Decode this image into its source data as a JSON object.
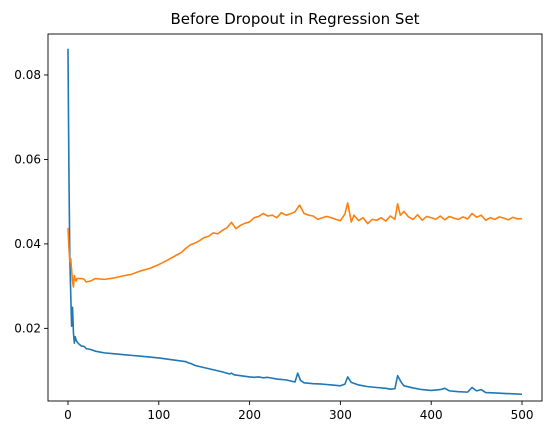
{
  "chart_data": {
    "type": "line",
    "title": "Before Dropout in Regression Set",
    "xlabel": "",
    "ylabel": "",
    "xlim": [
      -22,
      522
    ],
    "ylim": [
      0.0028,
      0.0897
    ],
    "xticks": [
      0,
      100,
      200,
      300,
      400,
      500
    ],
    "yticks": [
      0.02,
      0.04,
      0.06,
      0.08
    ],
    "xtick_labels": [
      "0",
      "100",
      "200",
      "300",
      "400",
      "500"
    ],
    "ytick_labels": [
      "0.02",
      "0.04",
      "0.06",
      "0.08"
    ],
    "grid": false,
    "series": [
      {
        "color": "#1f77b4",
        "x": [
          0,
          1,
          2,
          3,
          4,
          5,
          6,
          7,
          8,
          9,
          10,
          12,
          15,
          18,
          20,
          25,
          30,
          40,
          50,
          60,
          70,
          80,
          90,
          100,
          110,
          120,
          130,
          133,
          135,
          140,
          150,
          160,
          170,
          178,
          180,
          183,
          190,
          200,
          205,
          210,
          215,
          220,
          230,
          240,
          250,
          253,
          256,
          260,
          270,
          280,
          290,
          300,
          305,
          308,
          312,
          320,
          330,
          340,
          350,
          355,
          360,
          363,
          367,
          370,
          380,
          390,
          400,
          410,
          415,
          420,
          430,
          440,
          445,
          450,
          455,
          460,
          470,
          480,
          490,
          500
        ],
        "y": [
          0.0862,
          0.058,
          0.037,
          0.0285,
          0.0205,
          0.025,
          0.019,
          0.0165,
          0.018,
          0.0172,
          0.0168,
          0.0163,
          0.0158,
          0.0157,
          0.0152,
          0.015,
          0.0146,
          0.0142,
          0.014,
          0.0138,
          0.0136,
          0.0134,
          0.0132,
          0.013,
          0.0127,
          0.0124,
          0.0121,
          0.0118,
          0.0117,
          0.0112,
          0.0107,
          0.0102,
          0.0097,
          0.0092,
          0.0094,
          0.009,
          0.0088,
          0.0085,
          0.0084,
          0.0085,
          0.0083,
          0.0084,
          0.008,
          0.0078,
          0.0073,
          0.0094,
          0.0077,
          0.0071,
          0.0069,
          0.0068,
          0.0066,
          0.0064,
          0.0068,
          0.0085,
          0.0072,
          0.0066,
          0.0062,
          0.006,
          0.0058,
          0.0056,
          0.0057,
          0.0088,
          0.0072,
          0.0064,
          0.0059,
          0.0055,
          0.0053,
          0.0055,
          0.0058,
          0.0052,
          0.005,
          0.0049,
          0.006,
          0.0052,
          0.0055,
          0.0048,
          0.0047,
          0.0046,
          0.0045,
          0.0044
        ]
      },
      {
        "color": "#ff7f0e",
        "x": [
          0,
          1,
          2,
          3,
          4,
          5,
          6,
          7,
          8,
          9,
          10,
          12,
          15,
          18,
          20,
          25,
          30,
          40,
          50,
          60,
          70,
          80,
          90,
          100,
          110,
          120,
          125,
          130,
          135,
          140,
          145,
          150,
          155,
          160,
          165,
          170,
          175,
          180,
          185,
          190,
          195,
          200,
          205,
          210,
          215,
          220,
          225,
          230,
          235,
          240,
          245,
          250,
          255,
          260,
          265,
          270,
          275,
          280,
          285,
          290,
          295,
          300,
          305,
          308,
          312,
          315,
          320,
          325,
          330,
          335,
          340,
          345,
          350,
          355,
          360,
          363,
          366,
          370,
          375,
          380,
          385,
          390,
          395,
          400,
          405,
          410,
          415,
          420,
          425,
          430,
          435,
          440,
          445,
          450,
          455,
          460,
          465,
          470,
          475,
          480,
          485,
          490,
          495,
          500
        ],
        "y": [
          0.0438,
          0.0392,
          0.0358,
          0.0365,
          0.0338,
          0.0312,
          0.0298,
          0.0325,
          0.0316,
          0.0312,
          0.0318,
          0.0318,
          0.0318,
          0.0316,
          0.031,
          0.0312,
          0.0318,
          0.0316,
          0.0319,
          0.0324,
          0.0328,
          0.0336,
          0.0342,
          0.0351,
          0.0362,
          0.0374,
          0.038,
          0.039,
          0.0398,
          0.0402,
          0.0408,
          0.0415,
          0.0418,
          0.0426,
          0.0424,
          0.0432,
          0.0438,
          0.0451,
          0.0436,
          0.0444,
          0.0449,
          0.0452,
          0.0462,
          0.0465,
          0.0472,
          0.0466,
          0.0468,
          0.0462,
          0.0474,
          0.0468,
          0.0471,
          0.0476,
          0.0492,
          0.0472,
          0.0468,
          0.0466,
          0.0458,
          0.0462,
          0.0465,
          0.0462,
          0.0458,
          0.0455,
          0.0471,
          0.0497,
          0.0452,
          0.0468,
          0.0455,
          0.0462,
          0.0448,
          0.0458,
          0.0456,
          0.0462,
          0.0454,
          0.0466,
          0.0458,
          0.0495,
          0.0468,
          0.0477,
          0.0464,
          0.0458,
          0.0469,
          0.0456,
          0.0465,
          0.0462,
          0.0458,
          0.0466,
          0.0457,
          0.0465,
          0.0461,
          0.0458,
          0.0464,
          0.0459,
          0.0472,
          0.0463,
          0.0468,
          0.0456,
          0.0462,
          0.0458,
          0.0464,
          0.0461,
          0.0457,
          0.0463,
          0.0459,
          0.046
        ]
      }
    ]
  }
}
